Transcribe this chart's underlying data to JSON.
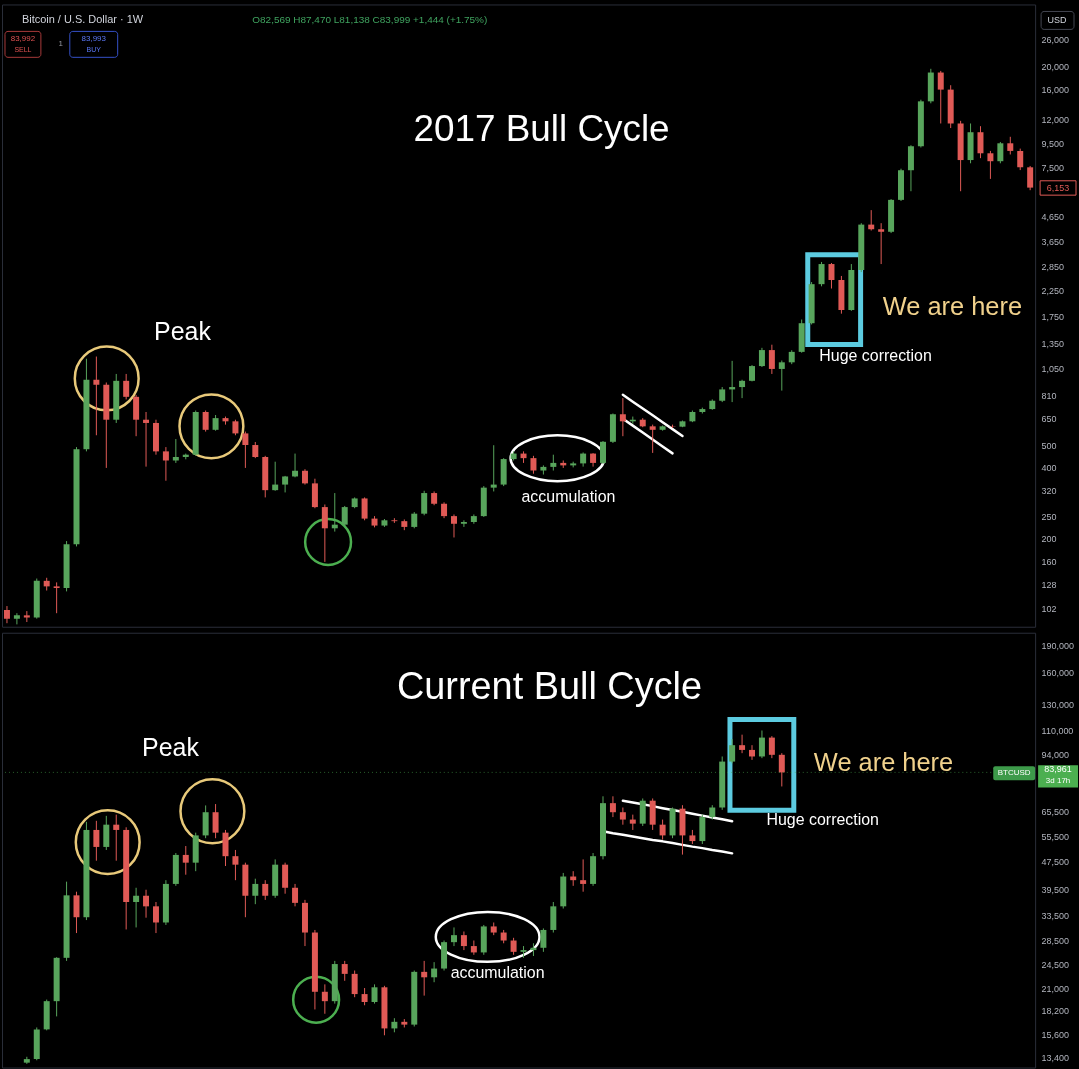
{
  "chart_data": [
    {
      "type": "candlestick",
      "title": "2017 Bull Cycle",
      "log": true,
      "tick_labels": "y",
      "categories": [
        null,
        null,
        null,
        null,
        null,
        null,
        null,
        null,
        null,
        null,
        null,
        null,
        null,
        null,
        null,
        null,
        null,
        null,
        null,
        null,
        null,
        null,
        null,
        null,
        null,
        null,
        null,
        null,
        null,
        null,
        null,
        null,
        null,
        null,
        null,
        null,
        null,
        null,
        null,
        null,
        null,
        null,
        null,
        null,
        null,
        null,
        null,
        null,
        null,
        null,
        null,
        null,
        null,
        null,
        null,
        null,
        null,
        null,
        null,
        null,
        null,
        null,
        null,
        null,
        null,
        null,
        null,
        null,
        null,
        null,
        null,
        null,
        null,
        null,
        null,
        null,
        null,
        null,
        null,
        null,
        null,
        null,
        null,
        null,
        null,
        null,
        null,
        null,
        null,
        null,
        null,
        null,
        null,
        null,
        null,
        null,
        null,
        null,
        null,
        null,
        null,
        null,
        null,
        null
      ],
      "ohlc": [
        [
          100,
          104,
          88,
          92
        ],
        [
          92,
          97,
          87,
          95
        ],
        [
          95,
          99,
          89,
          93
        ],
        [
          93,
          136,
          92,
          133
        ],
        [
          133,
          137,
          121,
          126
        ],
        [
          126,
          131,
          97,
          124
        ],
        [
          124,
          196,
          120,
          190
        ],
        [
          190,
          490,
          186,
          480
        ],
        [
          480,
          1160,
          470,
          945
        ],
        [
          945,
          1185,
          550,
          900
        ],
        [
          900,
          920,
          400,
          640
        ],
        [
          640,
          1000,
          620,
          935
        ],
        [
          935,
          1000,
          780,
          800
        ],
        [
          800,
          815,
          545,
          640
        ],
        [
          640,
          690,
          405,
          620
        ],
        [
          620,
          640,
          455,
          470
        ],
        [
          470,
          490,
          353,
          430
        ],
        [
          430,
          530,
          420,
          445
        ],
        [
          445,
          460,
          435,
          455
        ],
        [
          455,
          700,
          450,
          690
        ],
        [
          690,
          700,
          570,
          580
        ],
        [
          580,
          670,
          575,
          650
        ],
        [
          650,
          660,
          610,
          630
        ],
        [
          630,
          640,
          550,
          560
        ],
        [
          560,
          570,
          400,
          500
        ],
        [
          500,
          515,
          440,
          445
        ],
        [
          445,
          450,
          300,
          322
        ],
        [
          322,
          425,
          320,
          340
        ],
        [
          340,
          370,
          315,
          368
        ],
        [
          368,
          460,
          365,
          389
        ],
        [
          389,
          395,
          340,
          344
        ],
        [
          344,
          360,
          270,
          273
        ],
        [
          273,
          280,
          160,
          222
        ],
        [
          222,
          313,
          215,
          230
        ],
        [
          230,
          276,
          226,
          273
        ],
        [
          273,
          300,
          270,
          297
        ],
        [
          297,
          300,
          240,
          244
        ],
        [
          244,
          250,
          224,
          228
        ],
        [
          228,
          243,
          225,
          240
        ],
        [
          240,
          245,
          234,
          238
        ],
        [
          238,
          242,
          218,
          225
        ],
        [
          225,
          260,
          222,
          256
        ],
        [
          256,
          320,
          252,
          313
        ],
        [
          313,
          318,
          278,
          282
        ],
        [
          282,
          286,
          245,
          250
        ],
        [
          250,
          254,
          203,
          232
        ],
        [
          232,
          240,
          225,
          236
        ],
        [
          236,
          254,
          232,
          250
        ],
        [
          250,
          335,
          248,
          330
        ],
        [
          330,
          499,
          318,
          340
        ],
        [
          340,
          440,
          335,
          436
        ],
        [
          436,
          470,
          430,
          460
        ],
        [
          460,
          470,
          420,
          440
        ],
        [
          440,
          450,
          378,
          390
        ],
        [
          390,
          410,
          375,
          404
        ],
        [
          404,
          455,
          390,
          420
        ],
        [
          420,
          430,
          400,
          410
        ],
        [
          410,
          425,
          402,
          418
        ],
        [
          418,
          465,
          405,
          460
        ],
        [
          460,
          462,
          405,
          420
        ],
        [
          420,
          520,
          415,
          516
        ],
        [
          516,
          680,
          510,
          675
        ],
        [
          675,
          790,
          545,
          630
        ],
        [
          630,
          660,
          615,
          640
        ],
        [
          640,
          650,
          595,
          600
        ],
        [
          600,
          610,
          463,
          580
        ],
        [
          580,
          605,
          575,
          600
        ],
        [
          600,
          610,
          590,
          598
        ],
        [
          598,
          635,
          595,
          630
        ],
        [
          630,
          700,
          625,
          690
        ],
        [
          690,
          720,
          680,
          710
        ],
        [
          710,
          780,
          705,
          770
        ],
        [
          770,
          880,
          760,
          860
        ],
        [
          860,
          1136,
          760,
          880
        ],
        [
          880,
          945,
          790,
          935
        ],
        [
          935,
          1090,
          930,
          1080
        ],
        [
          1080,
          1290,
          1070,
          1262
        ],
        [
          1262,
          1330,
          1000,
          1050
        ],
        [
          1050,
          1140,
          850,
          1120
        ],
        [
          1120,
          1260,
          1100,
          1240
        ],
        [
          1240,
          1700,
          1230,
          1640
        ],
        [
          1640,
          2450,
          1620,
          2400
        ],
        [
          2400,
          2980,
          2350,
          2920
        ],
        [
          2920,
          2950,
          2300,
          2500
        ],
        [
          2500,
          2600,
          1800,
          1865
        ],
        [
          1865,
          2920,
          1850,
          2755
        ],
        [
          2755,
          4350,
          2700,
          4290
        ],
        [
          4290,
          4940,
          4050,
          4100
        ],
        [
          4100,
          4350,
          2920,
          4000
        ],
        [
          4000,
          5500,
          3950,
          5460
        ],
        [
          5460,
          7400,
          5400,
          7290
        ],
        [
          7290,
          9300,
          5940,
          9210
        ],
        [
          9210,
          14500,
          9100,
          14270
        ],
        [
          14270,
          19600,
          14000,
          18900
        ],
        [
          18900,
          19200,
          11500,
          16000
        ],
        [
          16000,
          16700,
          11000,
          11500
        ],
        [
          11500,
          11800,
          5940,
          8050
        ],
        [
          8050,
          11500,
          7800,
          10560
        ],
        [
          10560,
          11200,
          8200,
          8600
        ],
        [
          8600,
          8800,
          6700,
          7960
        ],
        [
          7960,
          9600,
          7800,
          9480
        ],
        [
          9480,
          10100,
          8500,
          8800
        ],
        [
          8800,
          9000,
          7300,
          7500
        ],
        [
          7500,
          7600,
          6000,
          6153
        ]
      ],
      "colors": [
        "#e05a56",
        "#58a55c",
        "#e05a56",
        "#58a55c",
        "#e05a56",
        "#e05a56",
        "#58a55c",
        "#58a55c",
        "#58a55c",
        "#e05a56",
        "#e05a56",
        "#58a55c",
        "#e05a56",
        "#e05a56",
        "#e05a56",
        "#e05a56",
        "#e05a56",
        "#58a55c",
        "#58a55c",
        "#58a55c",
        "#e05a56",
        "#58a55c",
        "#e05a56",
        "#e05a56",
        "#e05a56",
        "#e05a56",
        "#e05a56",
        "#58a55c",
        "#58a55c",
        "#58a55c",
        "#e05a56",
        "#e05a56",
        "#e05a56",
        "#58a55c",
        "#58a55c",
        "#58a55c",
        "#e05a56",
        "#e05a56",
        "#58a55c",
        "#e05a56",
        "#e05a56",
        "#58a55c",
        "#58a55c",
        "#e05a56",
        "#e05a56",
        "#e05a56",
        "#58a55c",
        "#58a55c",
        "#58a55c",
        "#58a55c",
        "#58a55c",
        "#58a55c",
        "#e05a56",
        "#e05a56",
        "#58a55c",
        "#58a55c",
        "#e05a56",
        "#58a55c",
        "#58a55c",
        "#e05a56",
        "#58a55c",
        "#58a55c",
        "#e05a56",
        "#58a55c",
        "#e05a56",
        "#e05a56",
        "#58a55c",
        "#e05a56",
        "#58a55c",
        "#58a55c",
        "#58a55c",
        "#58a55c",
        "#58a55c",
        "#58a55c",
        "#58a55c",
        "#58a55c",
        "#58a55c",
        "#e05a56",
        "#58a55c",
        "#58a55c",
        "#58a55c",
        "#58a55c",
        "#58a55c",
        "#e05a56",
        "#e05a56",
        "#58a55c",
        "#58a55c",
        "#e05a56",
        "#e05a56",
        "#58a55c",
        "#58a55c",
        "#58a55c",
        "#58a55c",
        "#58a55c",
        "#e05a56",
        "#e05a56",
        "#e05a56",
        "#58a55c",
        "#e05a56",
        "#e05a56",
        "#58a55c",
        "#e05a56",
        "#e05a56",
        "#e05a56"
      ],
      "series": [
        {
          "type": "line",
          "color": "#ffffff",
          "values": [
            null,
            null,
            null,
            null,
            null,
            null,
            null,
            null,
            null,
            null,
            null,
            null,
            null,
            null,
            null,
            null,
            null,
            null,
            null,
            null,
            null,
            null,
            null,
            null,
            null,
            null,
            null,
            null,
            null,
            null,
            null,
            null,
            null,
            null,
            null,
            null,
            null,
            null,
            null,
            null,
            null,
            null,
            null,
            null,
            null,
            null,
            null,
            null,
            null,
            null,
            null,
            null,
            null,
            null,
            null,
            null,
            null,
            null,
            null,
            null,
            null,
            null,
            816,
            763,
            714,
            668,
            624,
            584,
            546,
            null,
            null,
            null,
            null,
            null,
            null,
            null,
            null,
            null,
            null,
            null,
            null,
            null,
            null,
            null,
            null,
            null,
            null,
            null,
            null,
            null,
            null,
            null,
            null,
            null,
            null,
            null,
            null,
            null,
            null,
            null,
            null,
            null,
            null,
            null
          ]
        },
        {
          "type": "line",
          "color": "#ffffff",
          "values": [
            null,
            null,
            null,
            null,
            null,
            null,
            null,
            null,
            null,
            null,
            null,
            null,
            null,
            null,
            null,
            null,
            null,
            null,
            null,
            null,
            null,
            null,
            null,
            null,
            null,
            null,
            null,
            null,
            null,
            null,
            null,
            null,
            null,
            null,
            null,
            null,
            null,
            null,
            null,
            null,
            null,
            null,
            null,
            null,
            null,
            null,
            null,
            null,
            null,
            null,
            null,
            null,
            null,
            null,
            null,
            null,
            null,
            null,
            null,
            null,
            null,
            null,
            646,
            604,
            565,
            528,
            493,
            461,
            null,
            null,
            null,
            null,
            null,
            null,
            null,
            null,
            null,
            null,
            null,
            null,
            null,
            null,
            null,
            null,
            null,
            null,
            null,
            null,
            null,
            null,
            null,
            null,
            null,
            null,
            null,
            null,
            null,
            null,
            null,
            null,
            null,
            null,
            null,
            null
          ]
        }
      ],
      "ylim": [
        85,
        36700
      ],
      "yticks": [
        {
          "value": 26000,
          "label": "26,000"
        },
        {
          "value": 20000,
          "label": "20,000"
        },
        {
          "value": 16000,
          "label": "16,000"
        },
        {
          "value": 12000,
          "label": "12,000"
        },
        {
          "value": 9500,
          "label": "9,500"
        },
        {
          "value": 7500,
          "label": "7,500"
        },
        {
          "value": 4650,
          "label": "4,650"
        },
        {
          "value": 3650,
          "label": "3,650"
        },
        {
          "value": 2850,
          "label": "2,850"
        },
        {
          "value": 2250,
          "label": "2,250"
        },
        {
          "value": 1750,
          "label": "1,750"
        },
        {
          "value": 1350,
          "label": "1,350"
        },
        {
          "value": 1050,
          "label": "1,050"
        },
        {
          "value": 810,
          "label": "810"
        },
        {
          "value": 650,
          "label": "650"
        },
        {
          "value": 500,
          "label": "500"
        },
        {
          "value": 400,
          "label": "400"
        },
        {
          "value": 320,
          "label": "320"
        },
        {
          "value": 250,
          "label": "250"
        },
        {
          "value": 200,
          "label": "200"
        },
        {
          "value": 160,
          "label": "160"
        },
        {
          "value": 128,
          "label": "128"
        },
        {
          "value": 102,
          "label": "102"
        }
      ],
      "annotations": [
        "Bitcoin / U.S. Dollar · 1W",
        "O82,569 H87,470 L81,138 C83,999 +1,444 (+1.75%)",
        "83,992",
        "SELL",
        "1",
        "83,993",
        "BUY",
        "USD",
        "Peak",
        "accumulation",
        "Huge correction",
        "We are here",
        "6,153"
      ]
    },
    {
      "type": "candlestick",
      "title": "Current Bull Cycle",
      "log": true,
      "tick_labels": "y",
      "categories": [
        null,
        null,
        null,
        null,
        null,
        null,
        null,
        null,
        null,
        null,
        null,
        null,
        null,
        null,
        null,
        null,
        null,
        null,
        null,
        null,
        null,
        null,
        null,
        null,
        null,
        null,
        null,
        null,
        null,
        null,
        null,
        null,
        null,
        null,
        null,
        null,
        null,
        null,
        null,
        null,
        null,
        null,
        null,
        null,
        null,
        null,
        null,
        null,
        null,
        null,
        null,
        null,
        null,
        null,
        null,
        null,
        null,
        null,
        null,
        null,
        null,
        null,
        null,
        null,
        null,
        null,
        null,
        null,
        null,
        null,
        null,
        null,
        null,
        null,
        null,
        null,
        null,
        null,
        null,
        null,
        null,
        null,
        null,
        null,
        null,
        null,
        null,
        null,
        null,
        null,
        null,
        null,
        null,
        null,
        null,
        null,
        null,
        null,
        null,
        null,
        null,
        null,
        null,
        null
      ],
      "ohlc": [
        null,
        null,
        [
          13000,
          13500,
          12900,
          13300
        ],
        [
          13300,
          16300,
          13200,
          16100
        ],
        [
          16100,
          19500,
          16000,
          19300
        ],
        [
          19300,
          25600,
          17500,
          25500
        ],
        [
          25500,
          41600,
          25000,
          38100
        ],
        [
          38100,
          39000,
          29900,
          33100
        ],
        [
          33100,
          61100,
          32500,
          58000
        ],
        [
          58000,
          61500,
          47600,
          52000
        ],
        [
          52000,
          63500,
          51000,
          60000
        ],
        [
          60000,
          64000,
          47600,
          58000
        ],
        [
          58000,
          59000,
          30600,
          36500
        ],
        [
          36500,
          40000,
          31000,
          38000
        ],
        [
          38000,
          39500,
          33000,
          35500
        ],
        [
          35500,
          36500,
          29900,
          32000
        ],
        [
          32000,
          42000,
          31500,
          41000
        ],
        [
          41000,
          50000,
          40500,
          49400
        ],
        [
          49400,
          52300,
          43500,
          47000
        ],
        [
          47000,
          57000,
          44500,
          56000
        ],
        [
          56000,
          67900,
          55000,
          65000
        ],
        [
          65000,
          68500,
          55000,
          57000
        ],
        [
          57000,
          58000,
          46000,
          49000
        ],
        [
          49000,
          51000,
          42000,
          46400
        ],
        [
          46400,
          47000,
          33100,
          38000
        ],
        [
          38000,
          42400,
          36000,
          41000
        ],
        [
          41000,
          42000,
          37000,
          38000
        ],
        [
          38000,
          48000,
          37500,
          46400
        ],
        [
          46400,
          47000,
          38500,
          40000
        ],
        [
          40000,
          41000,
          35500,
          36300
        ],
        [
          36300,
          37000,
          27500,
          30000
        ],
        [
          30000,
          30500,
          18300,
          20500
        ],
        [
          20500,
          21500,
          17800,
          19300
        ],
        [
          19300,
          25000,
          19000,
          24500
        ],
        [
          24500,
          25000,
          22000,
          23000
        ],
        [
          23000,
          23500,
          19800,
          20200
        ],
        [
          20200,
          21000,
          18800,
          19200
        ],
        [
          19200,
          21500,
          19000,
          21100
        ],
        [
          21100,
          21300,
          15500,
          16200
        ],
        [
          16200,
          17300,
          15800,
          16900
        ],
        [
          16900,
          17200,
          16300,
          16600
        ],
        [
          16600,
          23500,
          16400,
          23300
        ],
        [
          23300,
          25000,
          20000,
          22500
        ],
        [
          22500,
          24800,
          21800,
          23800
        ],
        [
          23800,
          28500,
          23500,
          28200
        ],
        [
          28200,
          31000,
          27500,
          29500
        ],
        [
          29500,
          30200,
          26800,
          27500
        ],
        [
          27500,
          28500,
          26000,
          26400
        ],
        [
          26400,
          31500,
          26000,
          31200
        ],
        [
          31200,
          32000,
          29500,
          30000
        ],
        [
          30000,
          30500,
          28000,
          28500
        ],
        [
          28500,
          29000,
          26000,
          26500
        ],
        [
          26500,
          27500,
          25500,
          26800
        ],
        [
          26800,
          28000,
          25800,
          27200
        ],
        [
          27200,
          30800,
          26500,
          30500
        ],
        [
          30500,
          36500,
          30000,
          35500
        ],
        [
          35500,
          44000,
          35000,
          43000
        ],
        [
          43000,
          44500,
          40500,
          42000
        ],
        [
          42000,
          48000,
          39000,
          41000
        ],
        [
          41000,
          50000,
          40500,
          49000
        ],
        [
          49000,
          72000,
          48000,
          68900
        ],
        [
          68900,
          72000,
          63000,
          65000
        ],
        [
          65000,
          67000,
          60000,
          62000
        ],
        [
          62000,
          64000,
          58000,
          60400
        ],
        [
          60400,
          71000,
          59500,
          70000
        ],
        [
          70000,
          71000,
          58000,
          60000
        ],
        [
          60000,
          62000,
          54500,
          56000
        ],
        [
          56000,
          67000,
          55000,
          66500
        ],
        [
          66500,
          68000,
          49500,
          56000
        ],
        [
          56000,
          58000,
          53000,
          54000
        ],
        [
          54000,
          64000,
          53000,
          63000
        ],
        [
          63000,
          68000,
          62000,
          67000
        ],
        [
          67000,
          93000,
          66000,
          90000
        ],
        [
          90000,
          104000,
          89000,
          100000
        ],
        [
          100000,
          107000,
          95000,
          97000
        ],
        [
          97000,
          100000,
          91000,
          93000
        ],
        [
          93000,
          109900,
          92000,
          105000
        ],
        [
          105000,
          106000,
          92000,
          94000
        ],
        [
          94000,
          95000,
          76700,
          83961
        ],
        null,
        null,
        null,
        null,
        null,
        null,
        null,
        null,
        null,
        null,
        null,
        null,
        null,
        null,
        null,
        null,
        null,
        null,
        null,
        null,
        null,
        null,
        null,
        null,
        null
      ],
      "colors": [
        null,
        null,
        "#58a55c",
        "#58a55c",
        "#58a55c",
        "#58a55c",
        "#58a55c",
        "#e05a56",
        "#58a55c",
        "#e05a56",
        "#58a55c",
        "#e05a56",
        "#e05a56",
        "#58a55c",
        "#e05a56",
        "#e05a56",
        "#58a55c",
        "#58a55c",
        "#e05a56",
        "#58a55c",
        "#58a55c",
        "#e05a56",
        "#e05a56",
        "#e05a56",
        "#e05a56",
        "#58a55c",
        "#e05a56",
        "#58a55c",
        "#e05a56",
        "#e05a56",
        "#e05a56",
        "#e05a56",
        "#e05a56",
        "#58a55c",
        "#e05a56",
        "#e05a56",
        "#e05a56",
        "#58a55c",
        "#e05a56",
        "#58a55c",
        "#e05a56",
        "#58a55c",
        "#e05a56",
        "#58a55c",
        "#58a55c",
        "#58a55c",
        "#e05a56",
        "#e05a56",
        "#58a55c",
        "#e05a56",
        "#e05a56",
        "#e05a56",
        "#58a55c",
        "#58a55c",
        "#58a55c",
        "#58a55c",
        "#58a55c",
        "#e05a56",
        "#e05a56",
        "#58a55c",
        "#58a55c",
        "#e05a56",
        "#e05a56",
        "#e05a56",
        "#58a55c",
        "#e05a56",
        "#e05a56",
        "#58a55c",
        "#e05a56",
        "#e05a56",
        "#58a55c",
        "#58a55c",
        "#58a55c",
        "#58a55c",
        "#e05a56",
        "#e05a56",
        "#58a55c",
        "#e05a56",
        "#e05a56",
        null,
        null,
        null,
        null,
        null,
        null,
        null,
        null,
        null,
        null,
        null,
        null,
        null,
        null,
        null,
        null,
        null,
        null,
        null,
        null,
        null,
        null,
        null,
        null,
        null
      ],
      "series": [
        {
          "type": "line",
          "color": "#ffffff",
          "values": [
            null,
            null,
            null,
            null,
            null,
            null,
            null,
            null,
            null,
            null,
            null,
            null,
            null,
            null,
            null,
            null,
            null,
            null,
            null,
            null,
            null,
            null,
            null,
            null,
            null,
            null,
            null,
            null,
            null,
            null,
            null,
            null,
            null,
            null,
            null,
            null,
            null,
            null,
            null,
            null,
            null,
            null,
            null,
            null,
            null,
            null,
            null,
            null,
            null,
            null,
            null,
            null,
            null,
            null,
            null,
            null,
            null,
            null,
            null,
            null,
            null,
            null,
            70000,
            69200,
            68400,
            67600,
            66700,
            65900,
            65200,
            64400,
            63600,
            62800,
            62100,
            61300,
            null,
            null,
            null,
            null,
            null,
            null,
            null,
            null,
            null,
            null,
            null,
            null,
            null,
            null,
            null,
            null,
            null,
            null,
            null,
            null,
            null,
            null,
            null,
            null,
            null,
            null,
            null,
            null,
            null,
            null
          ]
        },
        {
          "type": "line",
          "color": "#ffffff",
          "values": [
            null,
            null,
            null,
            null,
            null,
            null,
            null,
            null,
            null,
            null,
            null,
            null,
            null,
            null,
            null,
            null,
            null,
            null,
            null,
            null,
            null,
            null,
            null,
            null,
            null,
            null,
            null,
            null,
            null,
            null,
            null,
            null,
            null,
            null,
            null,
            null,
            null,
            null,
            null,
            null,
            null,
            null,
            null,
            null,
            null,
            null,
            null,
            null,
            null,
            null,
            null,
            null,
            null,
            null,
            null,
            null,
            null,
            null,
            null,
            null,
            57500,
            56800,
            56200,
            55600,
            55000,
            54400,
            53900,
            53300,
            52700,
            52100,
            51600,
            51000,
            50500,
            49900,
            null,
            null,
            null,
            null,
            null,
            null,
            null,
            null,
            null,
            null,
            null,
            null,
            null,
            null,
            null,
            null,
            null,
            null,
            null,
            null,
            null,
            null,
            null,
            null,
            null,
            null,
            null,
            null,
            null,
            null
          ]
        }
      ],
      "ylim": [
        12600,
        206000
      ],
      "yticks": [
        {
          "value": 190000,
          "label": "190,000"
        },
        {
          "value": 160000,
          "label": "160,000"
        },
        {
          "value": 130000,
          "label": "130,000"
        },
        {
          "value": 110000,
          "label": "110,000"
        },
        {
          "value": 94000,
          "label": "94,000"
        },
        {
          "value": 65500,
          "label": "65,500"
        },
        {
          "value": 55500,
          "label": "55,500"
        },
        {
          "value": 47500,
          "label": "47,500"
        },
        {
          "value": 39500,
          "label": "39,500"
        },
        {
          "value": 33500,
          "label": "33,500"
        },
        {
          "value": 28500,
          "label": "28,500"
        },
        {
          "value": 24500,
          "label": "24,500"
        },
        {
          "value": 21000,
          "label": "21,000"
        },
        {
          "value": 18200,
          "label": "18,200"
        },
        {
          "value": 15600,
          "label": "15,600"
        },
        {
          "value": 13400,
          "label": "13,400"
        }
      ],
      "ref_lines": [
        {
          "axis": "y",
          "value": 83961,
          "label": "83,961",
          "color": "#4caf50",
          "line_style": "dotted"
        }
      ],
      "annotations": [
        "Peak",
        "accumulation",
        "Huge correction",
        "We are here",
        "BTCUSD",
        "3d 17h"
      ]
    }
  ]
}
